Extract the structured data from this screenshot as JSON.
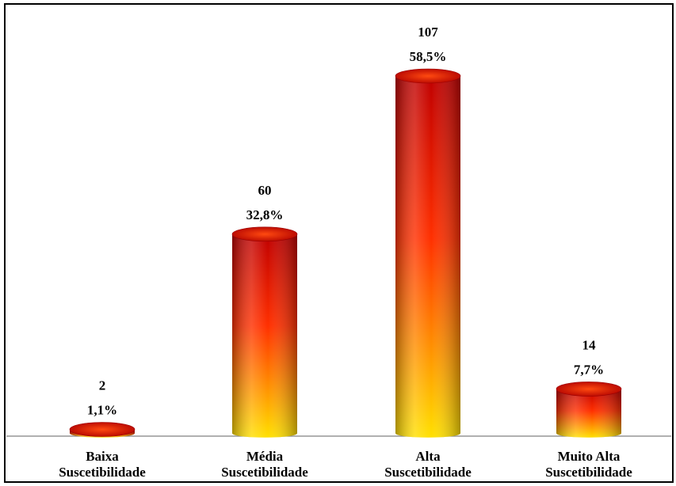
{
  "chart_data": {
    "type": "bar",
    "style": "3d-cylinder",
    "categories": [
      [
        "Baixa",
        "Suscetibilidade"
      ],
      [
        "Média",
        "Suscetibilidade"
      ],
      [
        "Alta",
        "Suscetibilidade"
      ],
      [
        "Muito Alta",
        "Suscetibilidade"
      ]
    ],
    "values": [
      2,
      60,
      107,
      14
    ],
    "percent_labels": [
      "1,1%",
      "32,8%",
      "58,5%",
      "7,7%"
    ],
    "ylim": [
      0,
      107
    ],
    "grid": false,
    "legend": "none",
    "colors": {
      "top": "#c00000",
      "mid": "#ff3000",
      "bottom": "#ffe000",
      "axis": "#808080"
    }
  }
}
